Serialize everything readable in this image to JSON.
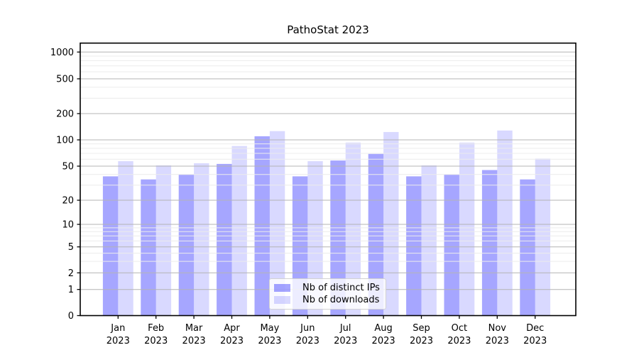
{
  "chart_data": {
    "type": "bar",
    "title": "PathoStat 2023",
    "xlabel": "",
    "ylabel": "",
    "categories": [
      "Jan",
      "Feb",
      "Mar",
      "Apr",
      "May",
      "Jun",
      "Jul",
      "Aug",
      "Sep",
      "Oct",
      "Nov",
      "Dec"
    ],
    "category_year": "2023",
    "series": [
      {
        "name": "Nb of distinct IPs",
        "color": "rgba(0,0,255,0.35)",
        "values": [
          38,
          35,
          40,
          53,
          110,
          38,
          58,
          69,
          38,
          40,
          45,
          35
        ]
      },
      {
        "name": "Nb of downloads",
        "color": "rgba(0,0,255,0.15)",
        "values": [
          57,
          51,
          54,
          85,
          126,
          57,
          93,
          123,
          51,
          93,
          128,
          61
        ]
      }
    ],
    "yscale": "pseudo-log",
    "ylim": [
      0,
      1000
    ],
    "yticks": [
      0,
      1,
      2,
      5,
      10,
      20,
      50,
      100,
      200,
      500,
      1000
    ],
    "minor_gridlines": [
      3,
      4,
      6,
      7,
      8,
      9,
      30,
      40,
      60,
      70,
      80,
      90,
      300,
      400,
      600,
      700,
      800,
      900
    ],
    "grid": "both",
    "legend": {
      "position": "lower center"
    },
    "colors": {
      "bar_distinct_ips": "rgba(0,0,255,0.35)",
      "bar_downloads": "rgba(0,0,255,0.15)",
      "major_grid": "#b4b4b4",
      "minor_grid": "#ececec",
      "axis": "#000000",
      "text": "#000000",
      "background": "#ffffff"
    }
  }
}
